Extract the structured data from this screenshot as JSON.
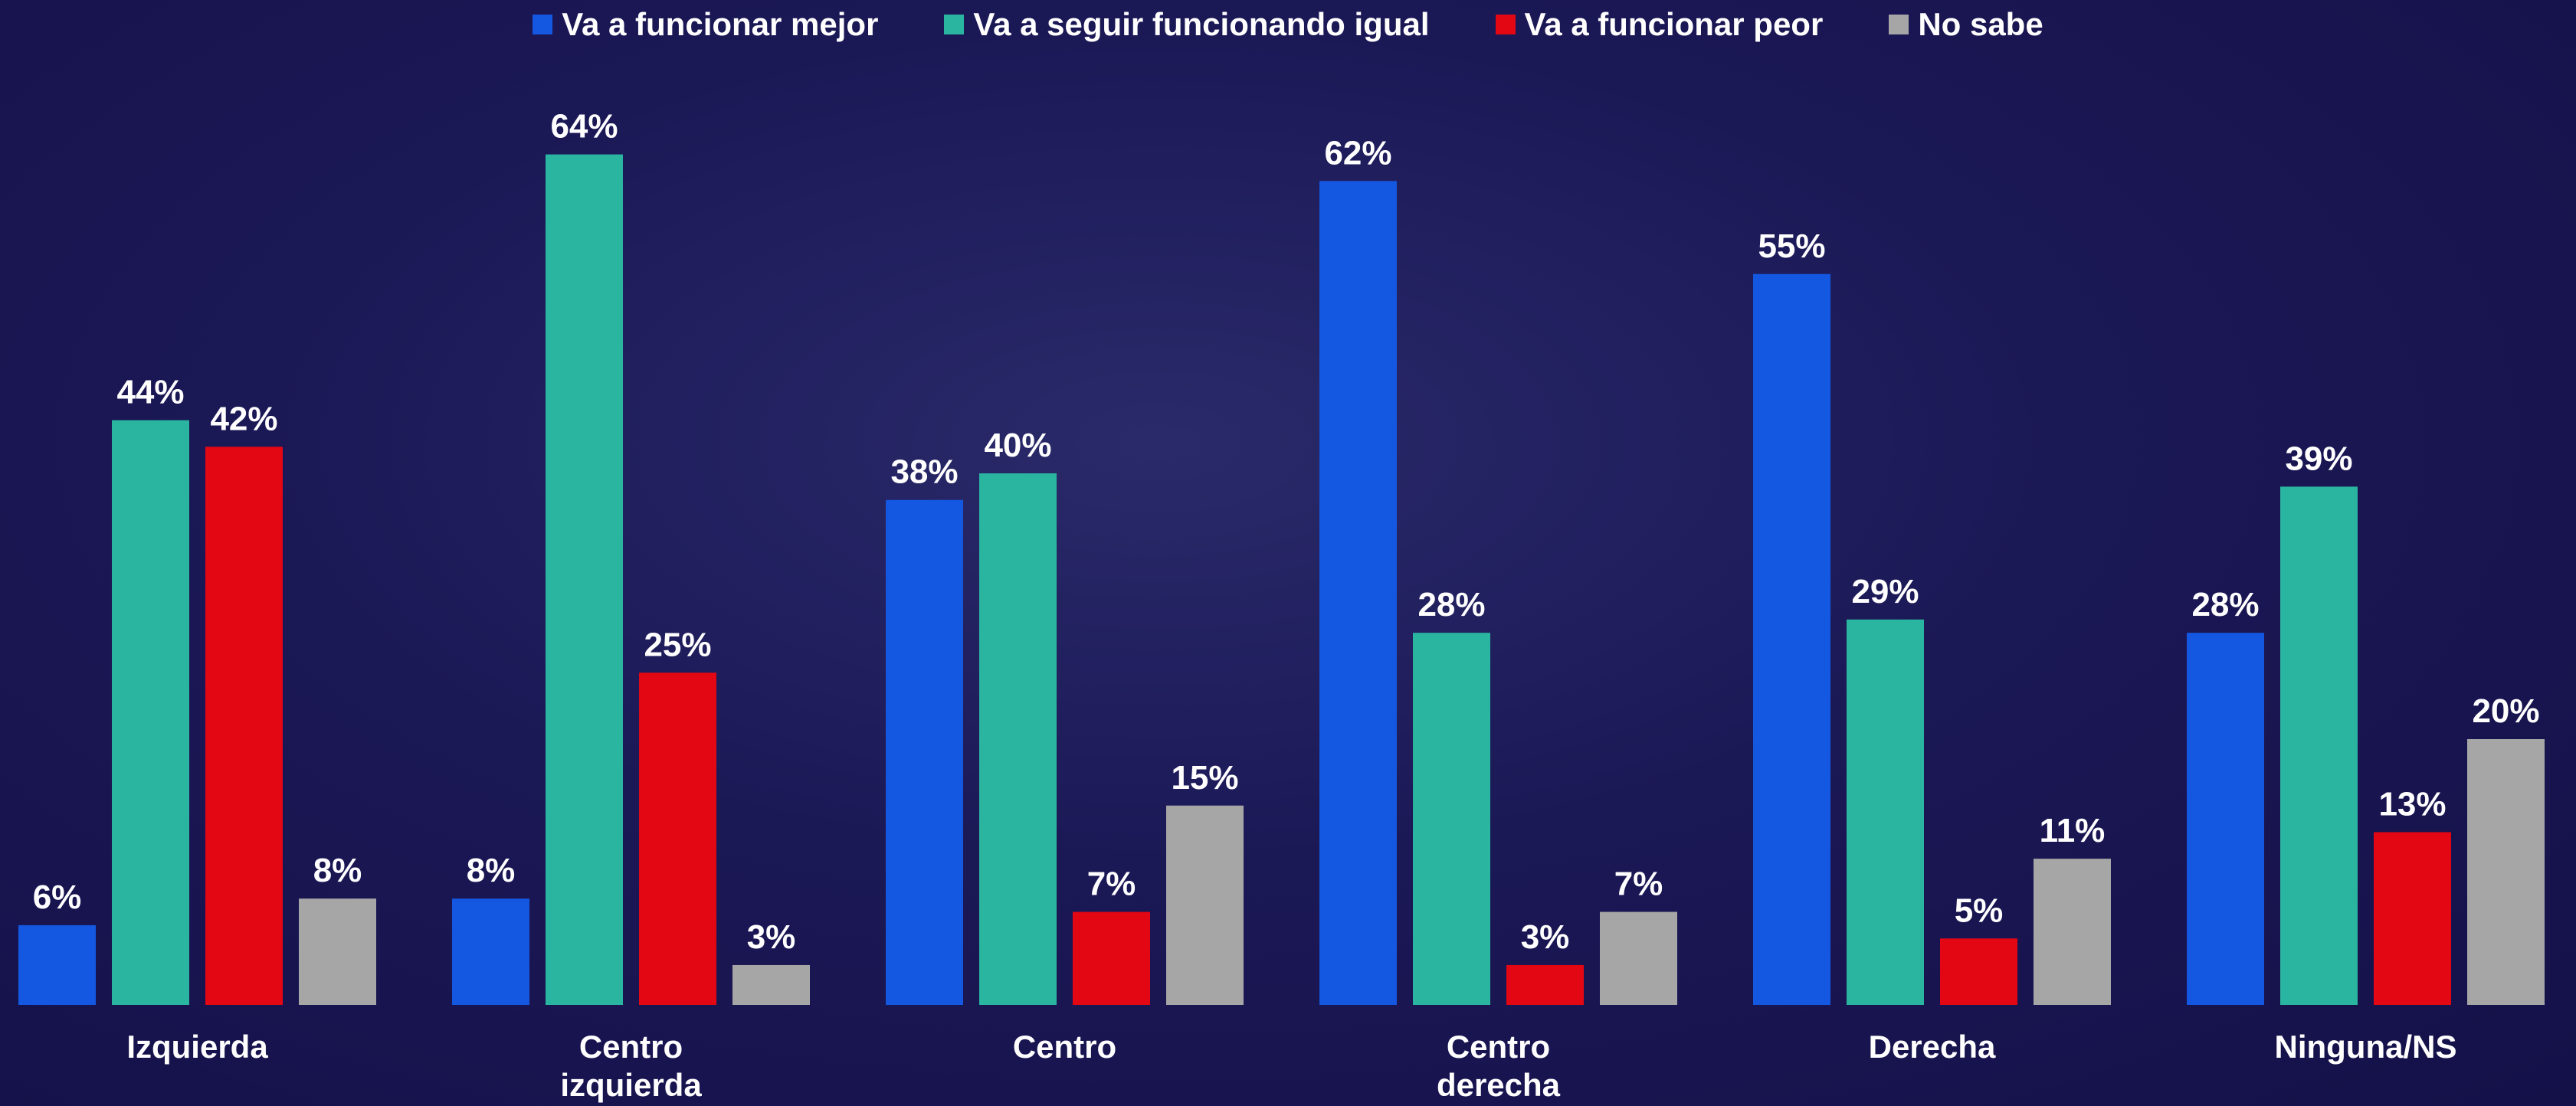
{
  "chart_data": {
    "type": "bar",
    "categories": [
      "Izquierda",
      "Centro izquierda",
      "Centro",
      "Centro derecha",
      "Derecha",
      "Ninguna/NS"
    ],
    "series": [
      {
        "name": "Va a funcionar mejor",
        "color": "#1457e0",
        "values": [
          6,
          8,
          38,
          62,
          55,
          28
        ],
        "value_labels": [
          "6%",
          "8%",
          "38%",
          "62%",
          "55%",
          "28%"
        ]
      },
      {
        "name": "Va a seguir funcionando igual",
        "color": "#2ab5a0",
        "values": [
          44,
          64,
          40,
          28,
          29,
          39
        ],
        "value_labels": [
          "44%",
          "64%",
          "40%",
          "28%",
          "29%",
          "39%"
        ]
      },
      {
        "name": "Va a funcionar peor",
        "color": "#e30613",
        "values": [
          42,
          25,
          7,
          3,
          5,
          13
        ],
        "value_labels": [
          "42%",
          "25%",
          "7%",
          "3%",
          "5%",
          "13%"
        ]
      },
      {
        "name": "No sabe",
        "color": "#a6a6a6",
        "values": [
          8,
          3,
          15,
          7,
          11,
          20
        ],
        "value_labels": [
          "8%",
          "3%",
          "15%",
          "7%",
          "11%",
          "20%"
        ]
      }
    ],
    "legend": "top"
  }
}
